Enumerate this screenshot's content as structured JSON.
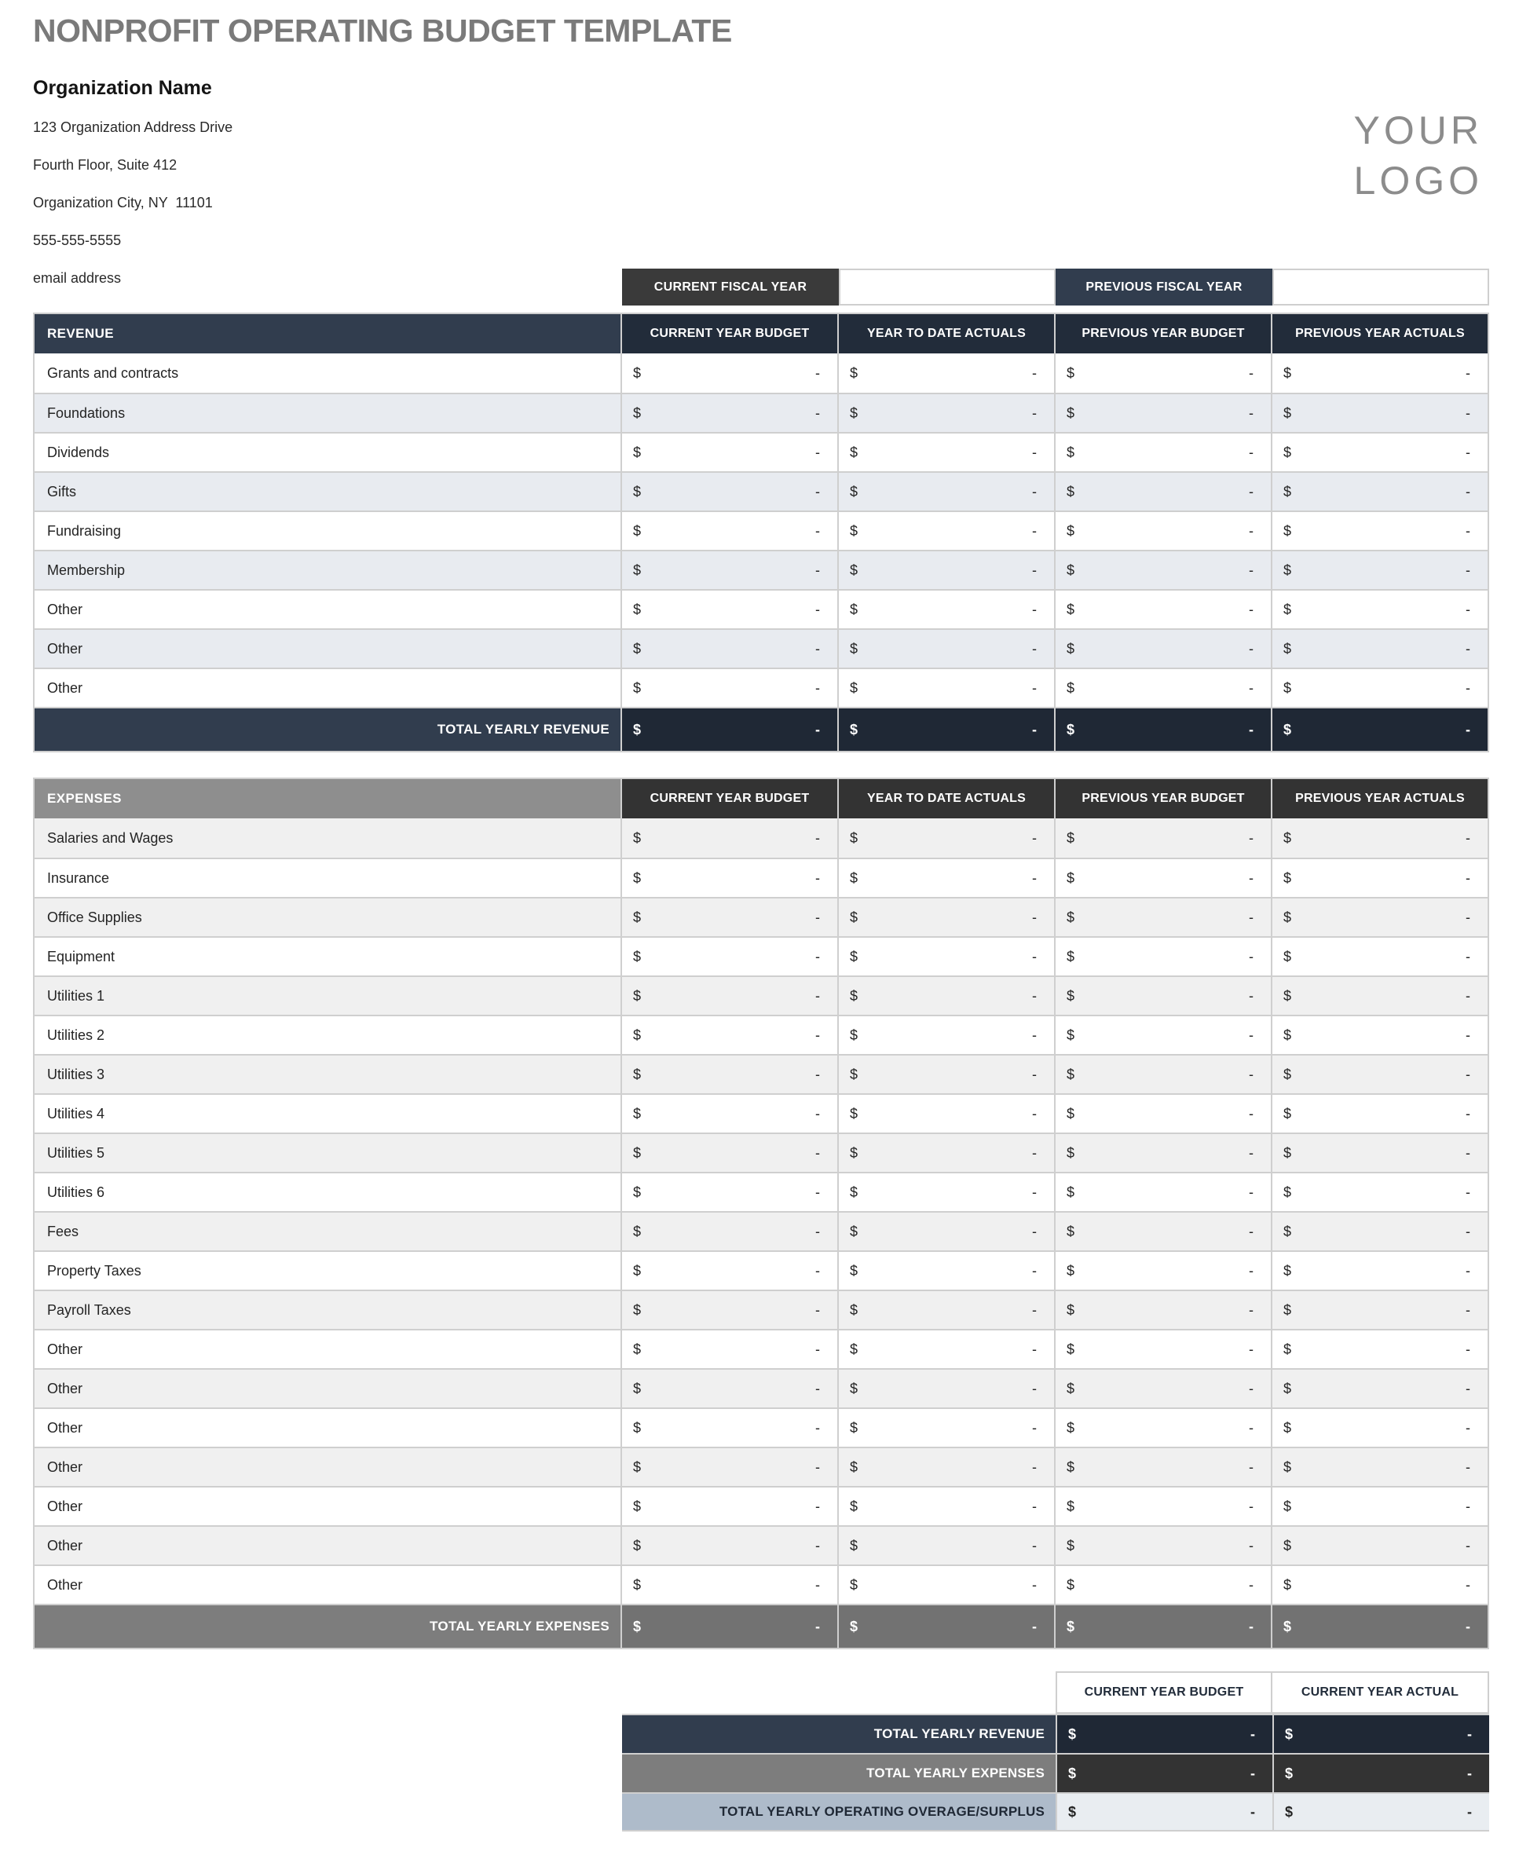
{
  "page": {
    "title": "NONPROFIT OPERATING BUDGET TEMPLATE"
  },
  "org": {
    "name": "Organization Name",
    "address1": "123 Organization Address Drive",
    "address2": "Fourth Floor, Suite 412",
    "address3": "Organization City, NY  11101",
    "phone": "555-555-5555",
    "email": "email address"
  },
  "logo": {
    "line1": "YOUR",
    "line2": "LOGO"
  },
  "fiscal": {
    "current_label": "CURRENT FISCAL YEAR",
    "current_value": "",
    "previous_label": "PREVIOUS FISCAL YEAR",
    "previous_value": ""
  },
  "columns": [
    "CURRENT YEAR BUDGET",
    "YEAR TO DATE ACTUALS",
    "PREVIOUS YEAR BUDGET",
    "PREVIOUS YEAR ACTUALS"
  ],
  "cell": {
    "currency": "$",
    "dash": "-"
  },
  "revenue": {
    "header": "REVENUE",
    "rows": [
      "Grants and contracts",
      "Foundations",
      "Dividends",
      "Gifts",
      "Fundraising",
      "Membership",
      "Other",
      "Other",
      "Other"
    ],
    "total_label": "TOTAL YEARLY REVENUE"
  },
  "expenses": {
    "header": "EXPENSES",
    "rows": [
      "Salaries and Wages",
      "Insurance",
      "Office Supplies",
      "Equipment",
      "Utilities 1",
      "Utilities 2",
      "Utilities 3",
      "Utilities 4",
      "Utilities 5",
      "Utilities 6",
      "Fees",
      "Property Taxes",
      "Payroll Taxes",
      "Other",
      "Other",
      "Other",
      "Other",
      "Other",
      "Other",
      "Other"
    ],
    "total_label": "TOTAL YEARLY EXPENSES"
  },
  "summary": {
    "columns": [
      "CURRENT YEAR BUDGET",
      "CURRENT YEAR ACTUAL"
    ],
    "rows": [
      {
        "label": "TOTAL YEARLY REVENUE",
        "style": "revenue"
      },
      {
        "label": "TOTAL YEARLY EXPENSES",
        "style": "expenses"
      },
      {
        "label": "TOTAL YEARLY OPERATING OVERAGE/SURPLUS",
        "style": "overage"
      }
    ]
  },
  "colors": {
    "title_gray": "#7a7a7a",
    "logo_gray": "#8c8c8c",
    "navy_bar": "#313d4e",
    "navy_header": "#222c3a",
    "navy_value": "#1f2835",
    "charcoal": "#3a3a3a",
    "charcoal_header": "#333333",
    "gray_bar": "#8e8e8e",
    "gray_total": "#7d7d7d",
    "gray_total_value": "#727272",
    "row_alt_blue": "#e8ebf0",
    "row_alt_gray": "#f0f0f0",
    "overage_label": "#aebbca",
    "overage_value": "#e9edf1",
    "border": "#cfcfcf"
  }
}
